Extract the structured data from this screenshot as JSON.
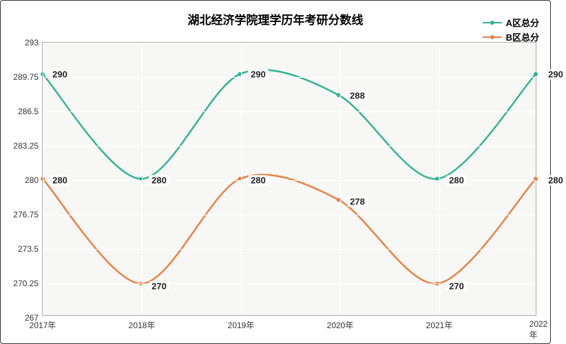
{
  "chart": {
    "type": "line",
    "title": "湖北经济学院理学历年考研分数线",
    "title_fontsize": 17,
    "background_color": "#f7f7f6",
    "grid_color": "#ffffff",
    "border_color": "#aaaaaa",
    "outer_border_color": "#333333",
    "line_width": 2.5,
    "marker_radius": 3,
    "y": {
      "min": 267,
      "max": 293,
      "ticks": [
        267,
        270.25,
        273.5,
        276.75,
        280,
        283.25,
        286.5,
        289.75,
        293
      ],
      "tick_labels": [
        "267",
        "270.25",
        "273.5",
        "276.75",
        "280",
        "283.25",
        "286.5",
        "289.75",
        "293"
      ]
    },
    "x": {
      "categories": [
        "2017年",
        "2018年",
        "2019年",
        "2020年",
        "2021年",
        "2022年"
      ]
    },
    "series": [
      {
        "name": "A区总分",
        "color": "#33b396",
        "values": [
          290,
          280,
          290,
          288,
          280,
          290
        ],
        "labels": [
          "290",
          "280",
          "290",
          "288",
          "280",
          "290"
        ]
      },
      {
        "name": "B区总分",
        "color": "#e98044",
        "values": [
          280,
          270,
          280,
          278,
          270,
          280
        ],
        "labels": [
          "280",
          "270",
          "280",
          "278",
          "270",
          "280"
        ]
      }
    ],
    "legend_position": "top-right",
    "label_fontsize": 13
  }
}
